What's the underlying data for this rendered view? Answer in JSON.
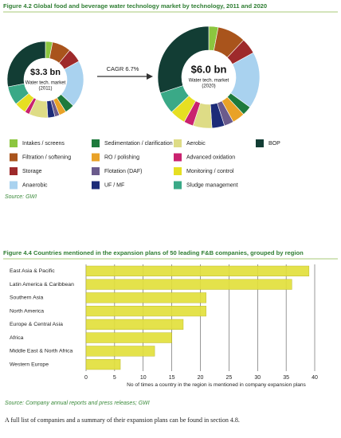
{
  "chart_data": [
    {
      "type": "donut",
      "title": "Figure 4.2  Global food and beverage water technology market by technology, 2011 and 2020",
      "categories": [
        "Intakes / screens",
        "Filtration / softening",
        "Storage",
        "Anaerobic",
        "Sedimentation / clarification",
        "RO / polishing",
        "Flotation (DAF)",
        "UF / MF",
        "Aerobic",
        "Advanced oxidation",
        "Monitoring / control",
        "Sludge management",
        "BOP"
      ],
      "colors": [
        "#8cc63f",
        "#a9541c",
        "#9e2a2b",
        "#a9d2ef",
        "#1d7a3c",
        "#e9a227",
        "#6b5b8c",
        "#1c2b78",
        "#dedc86",
        "#c9226f",
        "#e6df22",
        "#3aa987",
        "#123d34"
      ],
      "series": [
        {
          "values": [
            3,
            8,
            6,
            20,
            4,
            3,
            2,
            3,
            8,
            2,
            5,
            8,
            28
          ],
          "center": [
            "$3.3 bn",
            "Water tech. market",
            "(2011)"
          ]
        },
        {
          "values": [
            3,
            9,
            5,
            18,
            3,
            4,
            3,
            4,
            6,
            3,
            5,
            7,
            30
          ],
          "center": [
            "$6.0 bn",
            "Water tech. market",
            "(2020)"
          ]
        }
      ],
      "annotation": "CAGR 6.7%",
      "source": "Source: GWI"
    },
    {
      "type": "hbar",
      "title": "Figure 4.4  Countries mentioned in the expansion plans of 50 leading F&B companies, grouped by region",
      "categories": [
        "East Asia & Pacific",
        "Latin America & Caribbean",
        "Southern Asia",
        "North America",
        "Europe & Central Asia",
        "Africa",
        "Middle East & North Africa",
        "Western Europe"
      ],
      "values": [
        39,
        36,
        21,
        21,
        17,
        15,
        12,
        6
      ],
      "color": "#e2e03c",
      "xlim": [
        0,
        40
      ],
      "xticks": [
        0,
        5,
        10,
        15,
        20,
        25,
        30,
        35,
        40
      ],
      "grid": true,
      "xlabel": "No of times a country in the region is mentioned in company expansion plans",
      "source": "Source: Company annual reports and press releases; GWI"
    }
  ],
  "body_text": "A full list of companies and a summary of their expansion plans can be found in section 4.8."
}
